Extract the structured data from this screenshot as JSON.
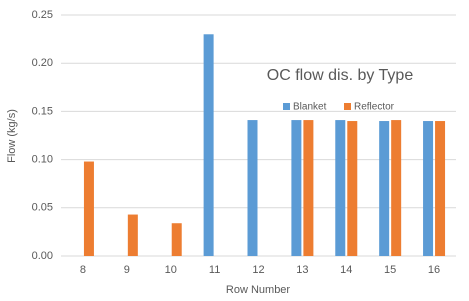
{
  "chart_data": {
    "type": "bar",
    "title": "OC flow dis. by Type",
    "x_label": "Row Number",
    "y_label": "Flow (kg/s)",
    "categories": [
      "8",
      "9",
      "10",
      "11",
      "12",
      "13",
      "14",
      "15",
      "16"
    ],
    "series": [
      {
        "name": "Blanket",
        "color": "#5b9bd5",
        "values": [
          null,
          null,
          null,
          0.23,
          0.141,
          0.141,
          0.141,
          0.14,
          0.14
        ]
      },
      {
        "name": "Reflector",
        "color": "#ed7d31",
        "values": [
          0.098,
          0.043,
          0.034,
          null,
          null,
          0.141,
          0.14,
          0.141,
          0.14
        ]
      }
    ],
    "ylim": [
      0,
      0.25
    ],
    "yticks": [
      {
        "value": 0,
        "label": "0.00"
      },
      0.05,
      {
        "value": 0.1,
        "label": "0.10"
      },
      0.15,
      {
        "value": 0.2,
        "label": "0.20"
      },
      0.25
    ],
    "grid": true
  }
}
